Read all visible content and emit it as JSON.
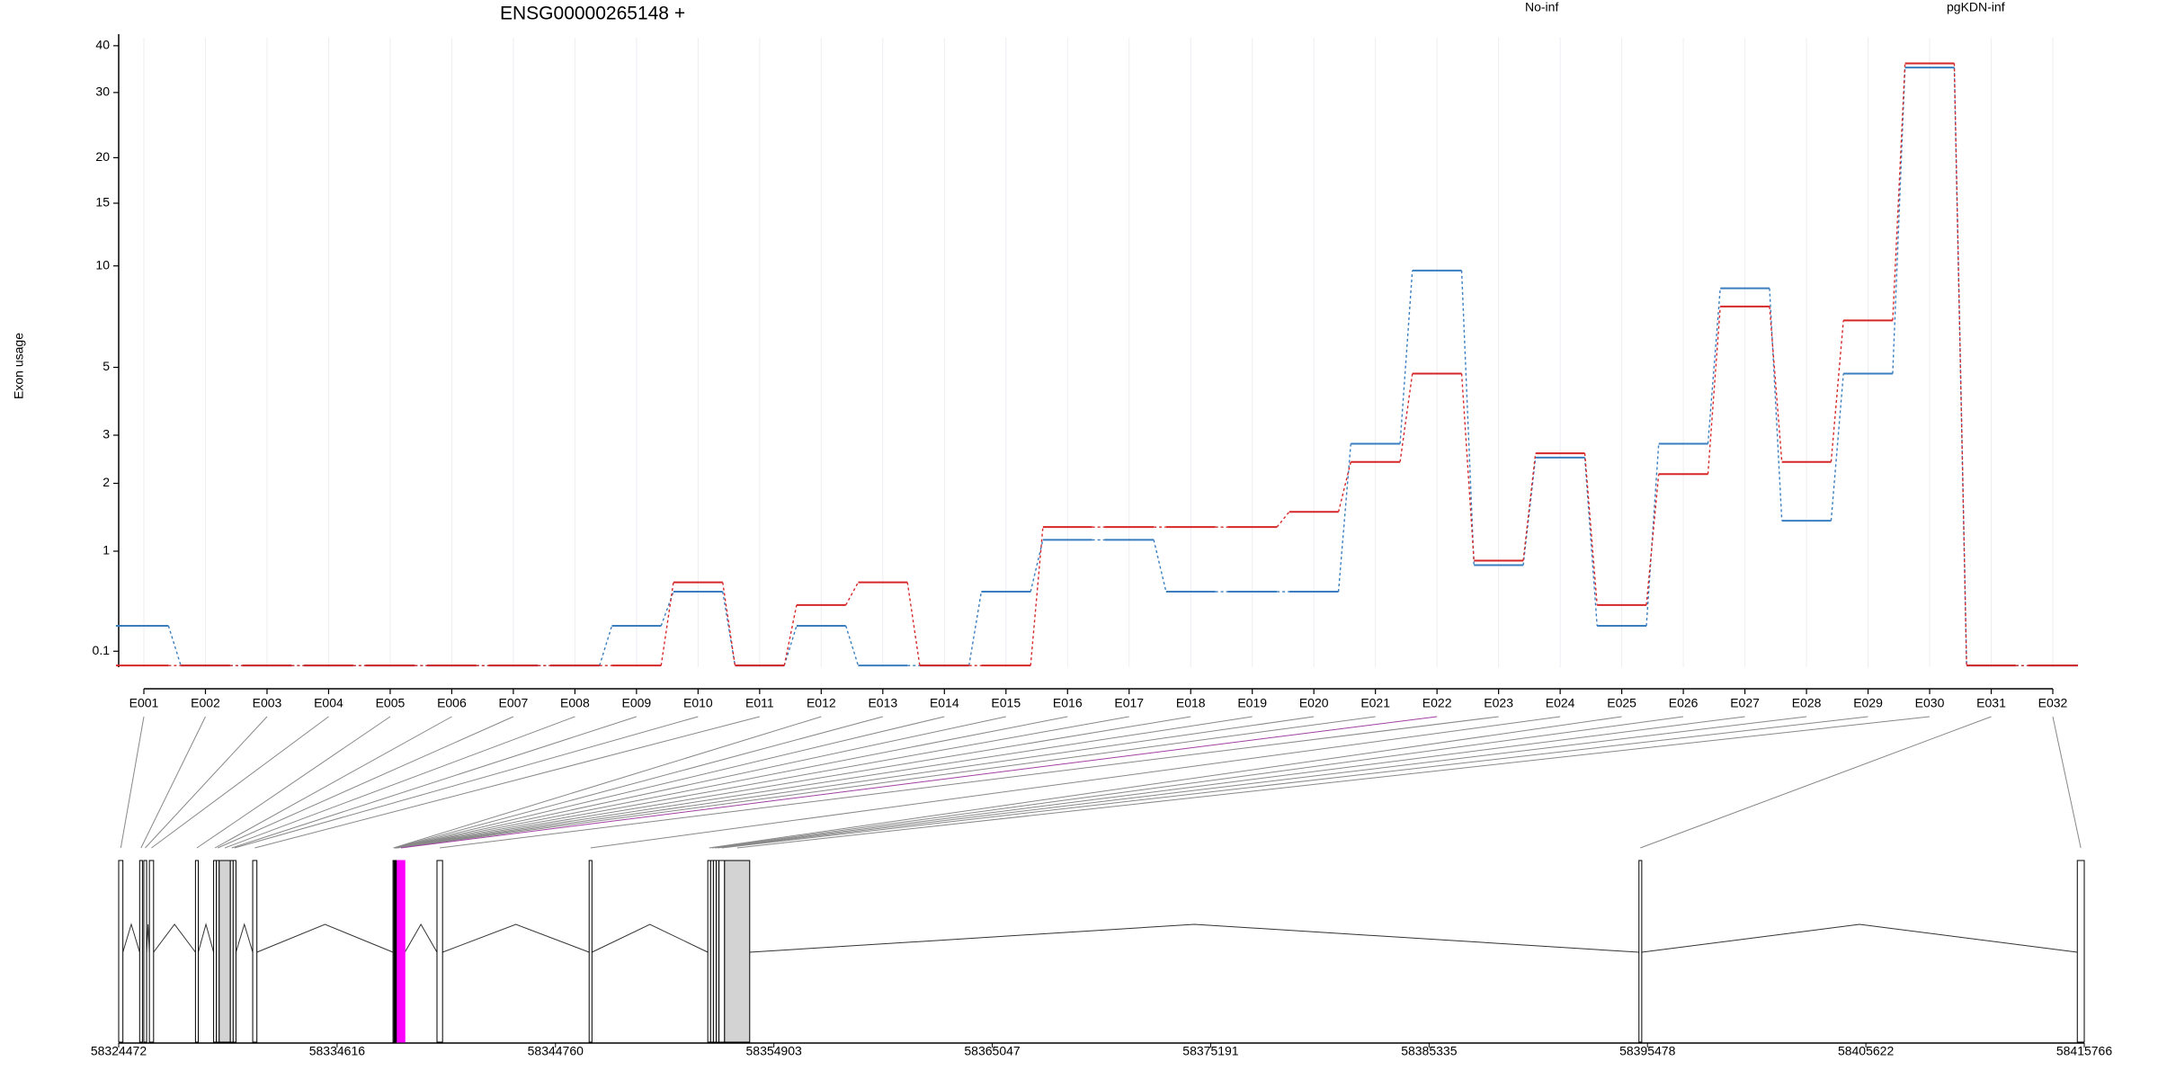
{
  "chart_data": [
    {
      "type": "line",
      "title": "ENSG00000265148 +",
      "ylabel": "Exon usage",
      "yscale": "log1p",
      "grid": true,
      "categories": [
        "E001",
        "E002",
        "E003",
        "E004",
        "E005",
        "E006",
        "E007",
        "E008",
        "E009",
        "E010",
        "E011",
        "E012",
        "E013",
        "E014",
        "E015",
        "E016",
        "E017",
        "E018",
        "E019",
        "E020",
        "E021",
        "E022",
        "E023",
        "E024",
        "E025",
        "E026",
        "E027",
        "E028",
        "E029",
        "E030",
        "E031",
        "E032"
      ],
      "series": [
        {
          "name": "pgKDN-inf",
          "color": "#3a7ebf",
          "values": [
            0.28,
            0.01,
            0.01,
            0.01,
            0.01,
            0.01,
            0.01,
            0.01,
            0.28,
            0.57,
            0.01,
            0.28,
            0.01,
            0.01,
            0.57,
            1.14,
            1.14,
            0.57,
            0.57,
            0.57,
            2.8,
            9.7,
            0.84,
            2.5,
            0.28,
            2.8,
            8.62,
            1.4,
            4.78,
            35.0,
            0.01,
            0.01
          ]
        },
        {
          "name": "No-inf",
          "color": "#d62728",
          "values": [
            0.01,
            0.01,
            0.01,
            0.01,
            0.01,
            0.01,
            0.01,
            0.01,
            0.01,
            0.66,
            0.01,
            0.45,
            0.66,
            0.01,
            0.01,
            1.31,
            1.31,
            1.31,
            1.31,
            1.53,
            2.41,
            4.78,
            0.89,
            2.59,
            0.45,
            2.17,
            7.63,
            2.41,
            6.94,
            35.9,
            0.01,
            0.01
          ]
        }
      ],
      "ylim": [
        0,
        42
      ],
      "yticks": [
        0.1,
        1,
        2,
        3,
        5,
        10,
        15,
        20,
        30,
        40
      ]
    },
    {
      "type": "gene-model",
      "xlim": [
        58324472,
        58415766
      ],
      "xticks": [
        58324472,
        58334616,
        58344760,
        58354903,
        58365047,
        58375191,
        58385335,
        58395478,
        58405622,
        58415766
      ],
      "bins": [
        [
          58324472,
          58324667
        ],
        [
          58325445,
          58325574
        ],
        [
          58325639,
          58325769
        ],
        [
          58325898,
          58326093
        ],
        [
          58328038,
          58328168
        ],
        [
          58328881,
          58329011
        ],
        [
          58329011,
          58329140
        ],
        [
          58329140,
          58329659
        ],
        [
          58329659,
          58329789
        ],
        [
          58329789,
          58329919
        ],
        [
          58330697,
          58330891
        ],
        [
          58337213,
          58337259
        ],
        [
          58337259,
          58337275
        ],
        [
          58337276,
          58337292
        ],
        [
          58337293,
          58337309
        ],
        [
          58337310,
          58337326
        ],
        [
          58337327,
          58337343
        ],
        [
          58337344,
          58337360
        ],
        [
          58337361,
          58337377
        ],
        [
          58337378,
          58337394
        ],
        [
          58337395,
          58337408
        ],
        [
          58337408,
          58337764
        ],
        [
          58339256,
          58339515
        ],
        [
          58346323,
          58346453
        ],
        [
          58351834,
          58351964
        ],
        [
          58351964,
          58352094
        ],
        [
          58352094,
          58352224
        ],
        [
          58352224,
          58352354
        ],
        [
          58352354,
          58352613
        ],
        [
          58352613,
          58353780
        ],
        [
          58395083,
          58395213
        ],
        [
          58415443,
          58415766
        ]
      ],
      "bin_colors": [
        "#ffffff",
        "#ffffff",
        "#ffffff",
        "#ffffff",
        "#ffffff",
        "#ffffff",
        "#ffffff",
        "#d3d3d3",
        "#ffffff",
        "#ffffff",
        "#ffffff",
        "#ffffff",
        "#ffffff",
        "#ffffff",
        "#ffffff",
        "#ffffff",
        "#ffffff",
        "#ffffff",
        "#ffffff",
        "#ffffff",
        "#ffffff",
        "#ff00ff",
        "#ffffff",
        "#ffffff",
        "#ffffff",
        "#ffffff",
        "#ffffff",
        "#ffffff",
        "#ffffff",
        "#d3d3d3",
        "#ffffff",
        "#ffffff"
      ]
    }
  ]
}
